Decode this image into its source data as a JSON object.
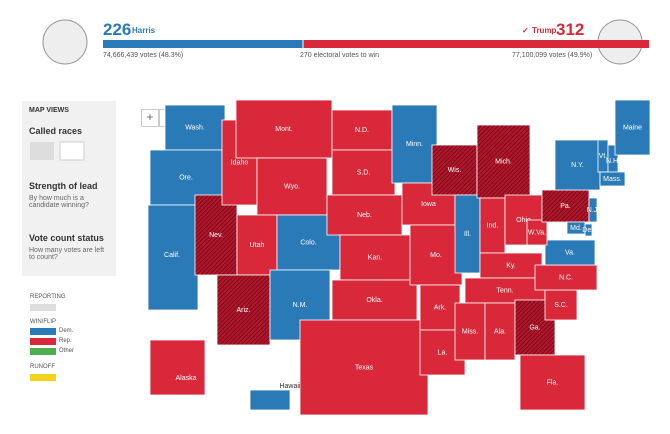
{
  "header": {
    "harris": {
      "electoral": "226",
      "name": "Harris",
      "votes": "74,666,439 votes (48.3%)"
    },
    "trump": {
      "check": "✓",
      "name": "Trump",
      "electoral": "312",
      "votes": "77,100,099 votes (49.9%)"
    },
    "threshold": "270 electoral votes to win"
  },
  "sidebar": {
    "title": "MAP VIEWS",
    "views": [
      {
        "name": "Called races"
      },
      {
        "name": "Strength of lead",
        "desc": "By how much is a candidate winning?"
      },
      {
        "name": "Vote count status",
        "desc": "How many votes are left to count?"
      }
    ]
  },
  "legend": {
    "reporting": "REPORTING",
    "winflip": "WIN/FLIP",
    "items": [
      "Dem.",
      "Rep.",
      "Other"
    ],
    "runoff": "RUNOFF"
  },
  "controls": [
    "+",
    "−"
  ],
  "states": [
    {
      "label": "Wash.",
      "color": "#2a7ab8"
    },
    {
      "label": "Ore.",
      "color": "#2a7ab8"
    },
    {
      "label": "Calif.",
      "color": "#2a7ab8"
    },
    {
      "label": "Nev.",
      "color": "#d9283a",
      "flip": true
    },
    {
      "label": "Idaho",
      "color": "#d9283a"
    },
    {
      "label": "Mont.",
      "color": "#d9283a"
    },
    {
      "label": "Wyo.",
      "color": "#d9283a"
    },
    {
      "label": "Utah",
      "color": "#d9283a"
    },
    {
      "label": "Ariz.",
      "color": "#d9283a",
      "flip": true
    },
    {
      "label": "Colo.",
      "color": "#2a7ab8"
    },
    {
      "label": "N.M.",
      "color": "#2a7ab8"
    },
    {
      "label": "N.D.",
      "color": "#d9283a"
    },
    {
      "label": "S.D.",
      "color": "#d9283a"
    },
    {
      "label": "Neb.",
      "color": "#d9283a"
    },
    {
      "label": "Kan.",
      "color": "#d9283a"
    },
    {
      "label": "Okla.",
      "color": "#d9283a"
    },
    {
      "label": "Texas",
      "color": "#d9283a"
    },
    {
      "label": "Minn.",
      "color": "#2a7ab8"
    },
    {
      "label": "Iowa",
      "color": "#d9283a"
    },
    {
      "label": "Mo.",
      "color": "#d9283a"
    },
    {
      "label": "Ark.",
      "color": "#d9283a"
    },
    {
      "label": "La.",
      "color": "#d9283a"
    },
    {
      "label": "Wis.",
      "color": "#d9283a",
      "flip": true
    },
    {
      "label": "Ill.",
      "color": "#2a7ab8"
    },
    {
      "label": "Mich.",
      "color": "#d9283a",
      "flip": true
    },
    {
      "label": "Ind.",
      "color": "#d9283a"
    },
    {
      "label": "Ohio",
      "color": "#d9283a"
    },
    {
      "label": "Ky.",
      "color": "#d9283a"
    },
    {
      "label": "Tenn.",
      "color": "#d9283a"
    },
    {
      "label": "Miss.",
      "color": "#d9283a"
    },
    {
      "label": "Ala.",
      "color": "#d9283a"
    },
    {
      "label": "Ga.",
      "color": "#d9283a",
      "flip": true
    },
    {
      "label": "Fla.",
      "color": "#d9283a"
    },
    {
      "label": "S.C.",
      "color": "#d9283a"
    },
    {
      "label": "N.C.",
      "color": "#d9283a"
    },
    {
      "label": "Va.",
      "color": "#2a7ab8"
    },
    {
      "label": "W.Va.",
      "color": "#d9283a"
    },
    {
      "label": "Pa.",
      "color": "#d9283a",
      "flip": true
    },
    {
      "label": "N.Y.",
      "color": "#2a7ab8"
    },
    {
      "label": "Vt.",
      "color": "#2a7ab8"
    },
    {
      "label": "N.H.",
      "color": "#2a7ab8"
    },
    {
      "label": "Maine",
      "color": "#2a7ab8"
    },
    {
      "label": "Mass.",
      "color": "#2a7ab8"
    },
    {
      "label": "N.J.",
      "color": "#2a7ab8"
    },
    {
      "label": "Md.",
      "color": "#2a7ab8"
    },
    {
      "label": "Del.",
      "color": "#2a7ab8"
    },
    {
      "label": "Alaska",
      "color": "#d9283a"
    },
    {
      "label": "Hawaii",
      "color": "#2a7ab8"
    }
  ]
}
